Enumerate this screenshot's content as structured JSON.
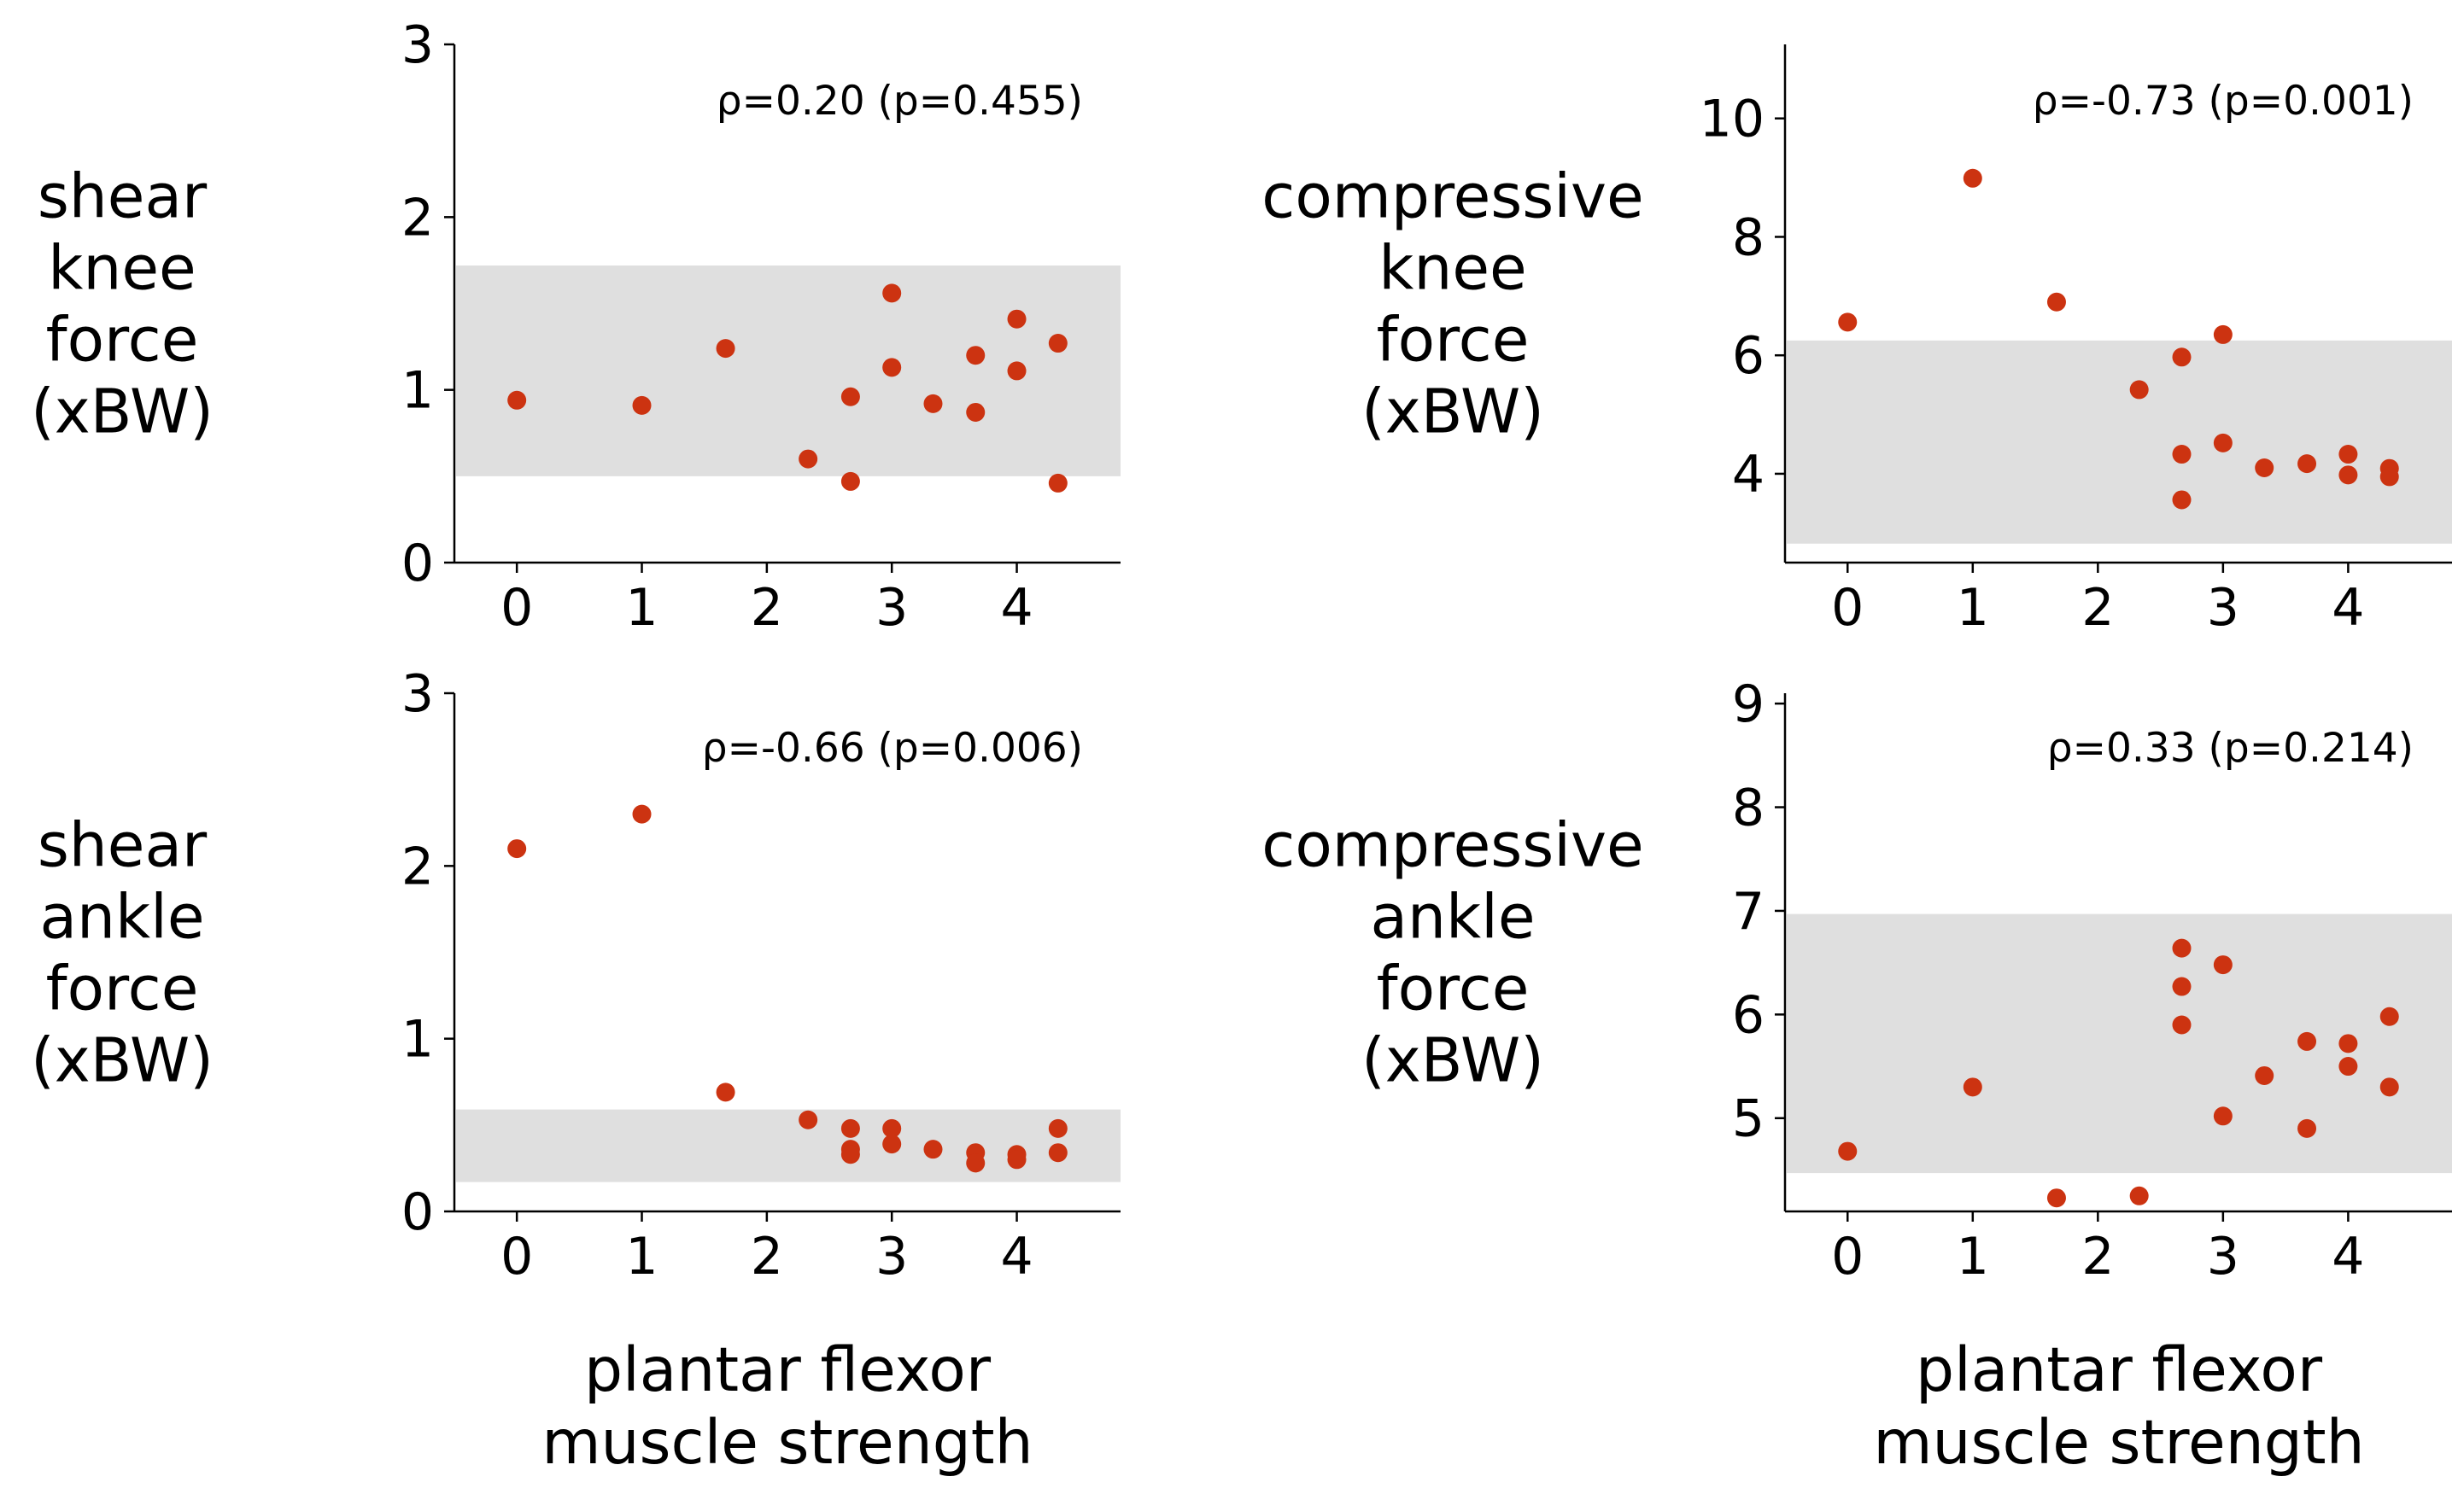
{
  "chart_data": [
    {
      "type": "scatter",
      "ylabel": [
        "shear",
        "knee",
        "force",
        "(xBW)"
      ],
      "xlabel": [],
      "annotation": "ρ=0.20 (p=0.455)",
      "xlim": [
        -0.5,
        4.83
      ],
      "ylim": [
        0,
        3
      ],
      "xticks": [
        0,
        1,
        2,
        3,
        4
      ],
      "yticks": [
        0,
        1,
        2,
        3
      ],
      "band": [
        0.5,
        1.72
      ],
      "series": [
        {
          "x": [
            0,
            1,
            1.67,
            2.33,
            2.67,
            2.67,
            3,
            3,
            3.33,
            3.67,
            3.67,
            4,
            4,
            4.33,
            4.33
          ],
          "y": [
            0.94,
            0.91,
            1.24,
            0.6,
            0.47,
            0.96,
            1.56,
            1.13,
            0.92,
            0.87,
            1.2,
            1.41,
            1.11,
            1.27,
            0.46
          ]
        }
      ]
    },
    {
      "type": "scatter",
      "ylabel": [
        "compressive",
        "knee",
        "force",
        "(xBW)"
      ],
      "xlabel": [],
      "annotation": "ρ=-0.73 (p=0.001)",
      "xlim": [
        -0.5,
        4.83
      ],
      "ylim": [
        2.5,
        11.25
      ],
      "xticks": [
        0,
        1,
        2,
        3,
        4
      ],
      "yticks": [
        4,
        6,
        8,
        10
      ],
      "band": [
        2.82,
        6.25
      ],
      "series": [
        {
          "x": [
            0,
            1,
            1.67,
            2.33,
            2.67,
            2.67,
            2.67,
            3,
            3,
            3.33,
            3.67,
            4,
            4,
            4.33,
            4.33
          ],
          "y": [
            6.56,
            8.99,
            6.9,
            5.42,
            5.97,
            4.33,
            3.56,
            6.35,
            4.52,
            4.1,
            4.17,
            4.33,
            3.98,
            4.09,
            3.95
          ]
        }
      ]
    },
    {
      "type": "scatter",
      "ylabel": [
        "shear",
        "ankle",
        "force",
        "(xBW)"
      ],
      "xlabel": [
        "plantar flexor",
        "muscle strength"
      ],
      "annotation": "ρ=-0.66 (p=0.006)",
      "xlim": [
        -0.5,
        4.83
      ],
      "ylim": [
        0,
        3
      ],
      "xticks": [
        0,
        1,
        2,
        3,
        4
      ],
      "yticks": [
        0,
        1,
        2,
        3
      ],
      "band": [
        0.17,
        0.59
      ],
      "series": [
        {
          "x": [
            0,
            1,
            1.67,
            2.33,
            2.67,
            2.67,
            2.67,
            3,
            3,
            3.33,
            3.67,
            3.67,
            4,
            4,
            4.33,
            4.33
          ],
          "y": [
            2.1,
            2.3,
            0.69,
            0.53,
            0.48,
            0.36,
            0.33,
            0.48,
            0.39,
            0.36,
            0.34,
            0.28,
            0.33,
            0.3,
            0.48,
            0.34
          ]
        }
      ]
    },
    {
      "type": "scatter",
      "ylabel": [
        "compressive",
        "ankle",
        "force",
        "(xBW)"
      ],
      "xlabel": [
        "plantar flexor",
        "muscle strength"
      ],
      "annotation": "ρ=0.33 (p=0.214)",
      "xlim": [
        -0.5,
        4.83
      ],
      "ylim": [
        4.1,
        9.1
      ],
      "xticks": [
        0,
        1,
        2,
        3,
        4
      ],
      "yticks": [
        5,
        6,
        7,
        8,
        9
      ],
      "band": [
        4.47,
        6.97
      ],
      "series": [
        {
          "x": [
            0,
            1,
            1.67,
            2.33,
            2.67,
            2.67,
            2.67,
            3,
            3,
            3.33,
            3.67,
            3.67,
            4,
            4,
            4.33,
            4.33
          ],
          "y": [
            4.68,
            5.3,
            4.23,
            4.25,
            6.64,
            6.27,
            5.9,
            6.48,
            5.02,
            5.41,
            5.74,
            4.9,
            5.72,
            5.5,
            5.98,
            5.3
          ]
        }
      ]
    }
  ],
  "colors": {
    "point": "#cc3311",
    "band": "#dfdfdf",
    "axis": "#000000"
  }
}
